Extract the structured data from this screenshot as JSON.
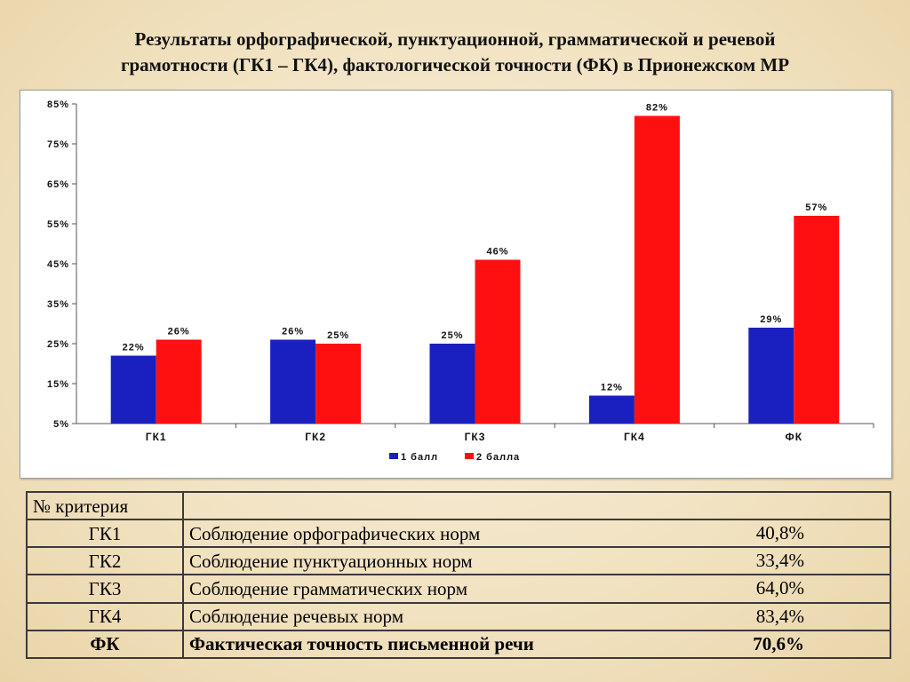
{
  "title": {
    "line1": "Результаты орфографической, пунктуационной, грамматической и речевой",
    "line2": "грамотности (ГК1 – ГК4), фактологической точности (ФК) в Прионежском МР"
  },
  "chart_data": {
    "type": "bar",
    "categories": [
      "ГК1",
      "ГК2",
      "ГК3",
      "ГК4",
      "ФК"
    ],
    "series": [
      {
        "name": "1 балл",
        "color": "#1a20c0",
        "values": [
          22,
          26,
          25,
          12,
          29
        ],
        "labels": [
          "22%",
          "26%",
          "25%",
          "12%",
          "29%"
        ]
      },
      {
        "name": "2 балла",
        "color": "#ff1010",
        "values": [
          26,
          25,
          46,
          82,
          57
        ],
        "labels": [
          "26%",
          "25%",
          "46%",
          "82%",
          "57%"
        ]
      }
    ],
    "y_ticks": [
      5,
      15,
      25,
      35,
      45,
      55,
      65,
      75,
      85
    ],
    "y_tick_labels": [
      "5%",
      "15%",
      "25%",
      "35%",
      "45%",
      "55%",
      "65%",
      "75%",
      "85%"
    ],
    "ylim": [
      5,
      85
    ],
    "legend_position": "bottom",
    "grid": false
  },
  "table": {
    "header": {
      "code": "№ критерия",
      "desc": ""
    },
    "rows": [
      {
        "code": "ГК1",
        "desc": "Соблюдение орфографических норм",
        "pct": "40,8%"
      },
      {
        "code": "ГК2",
        "desc": "Соблюдение пунктуационных норм",
        "pct": "33,4%"
      },
      {
        "code": "ГК3",
        "desc": "Соблюдение грамматических норм",
        "pct": "64,0%"
      },
      {
        "code": "ГК4",
        "desc": "Соблюдение речевых норм",
        "pct": "83,4%"
      },
      {
        "code": "ФК",
        "desc": "Фактическая точность письменной речи",
        "pct": "70,6%"
      }
    ]
  }
}
